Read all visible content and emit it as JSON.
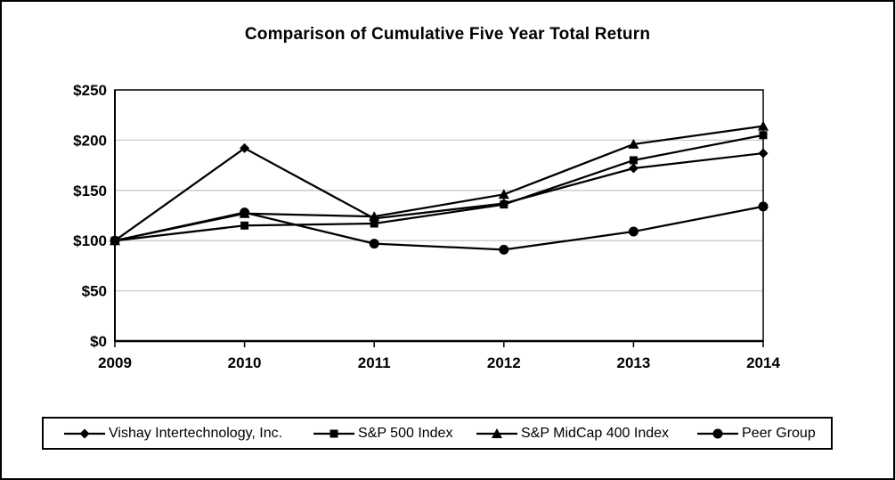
{
  "chart_data": {
    "type": "line",
    "title": "Comparison of Cumulative Five Year Total Return",
    "categories": [
      "2009",
      "2010",
      "2011",
      "2012",
      "2013",
      "2014"
    ],
    "series": [
      {
        "name": "Vishay Intertechnology, Inc.",
        "marker": "diamond",
        "values": [
          100,
          192,
          122,
          137,
          172,
          187
        ]
      },
      {
        "name": "S&P 500 Index",
        "marker": "square",
        "values": [
          100,
          115,
          117,
          136,
          180,
          205
        ]
      },
      {
        "name": "S&P MidCap 400 Index",
        "marker": "triangle",
        "values": [
          100,
          127,
          124,
          146,
          196,
          214
        ]
      },
      {
        "name": "Peer Group",
        "marker": "circle",
        "values": [
          100,
          128,
          97,
          91,
          109,
          134
        ]
      }
    ],
    "yticks": [
      {
        "label": "$0",
        "value": 0
      },
      {
        "label": "$50",
        "value": 50
      },
      {
        "label": "$100",
        "value": 100
      },
      {
        "label": "$150",
        "value": 150
      },
      {
        "label": "$200",
        "value": 200
      },
      {
        "label": "$250",
        "value": 250
      }
    ],
    "ylim": [
      0,
      250
    ],
    "grid": true,
    "legend_position": "bottom",
    "line_color": "#000000",
    "grid_color": "#c9c9c9",
    "background_color": "#ffffff"
  }
}
